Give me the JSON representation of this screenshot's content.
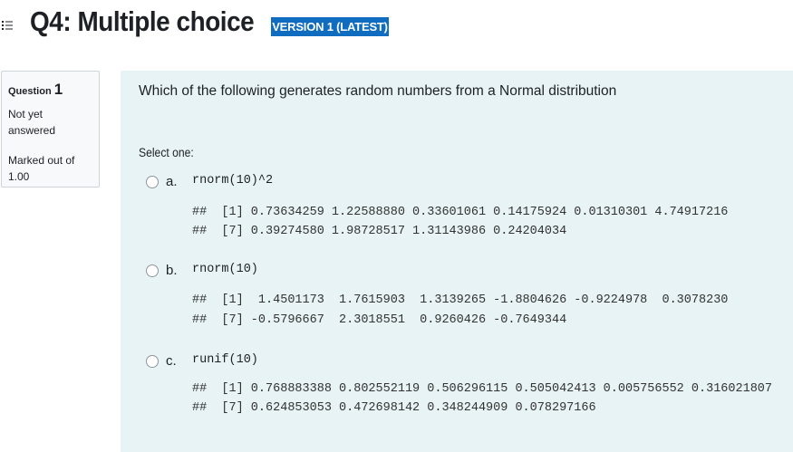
{
  "header": {
    "title": "Q4: Multiple choice",
    "version_badge": "VERSION 1 (LATEST)",
    "badge_color": "#0f6cbf"
  },
  "info": {
    "question_label": "Question",
    "question_number": "1",
    "status": "Not yet answered",
    "marked": "Marked out of 1.00"
  },
  "question": {
    "text": "Which of the following generates random numbers from a Normal distribution",
    "select_label": "Select one:",
    "options": [
      {
        "letter": "a.",
        "code": "rnorm(10)^2",
        "output": [
          "##  [1] 0.73634259 1.22588880 0.33601061 0.14175924 0.01310301 4.74917216",
          "##  [7] 0.39274580 1.98728517 1.31143986 0.24204034"
        ]
      },
      {
        "letter": "b.",
        "code": "rnorm(10)",
        "output": [
          "##  [1]  1.4501173  1.7615903  1.3139265 -1.8804626 -0.9224978  0.3078230",
          "##  [7] -0.5796667  2.3018551  0.9260426 -0.7649344"
        ]
      },
      {
        "letter": "c.",
        "code": "runif(10)",
        "output": [
          "##  [1] 0.768883388 0.802552119 0.506296115 0.505042413 0.005756552 0.316021807",
          "##  [7] 0.624853053 0.472698142 0.348244909 0.078297166"
        ]
      }
    ]
  }
}
